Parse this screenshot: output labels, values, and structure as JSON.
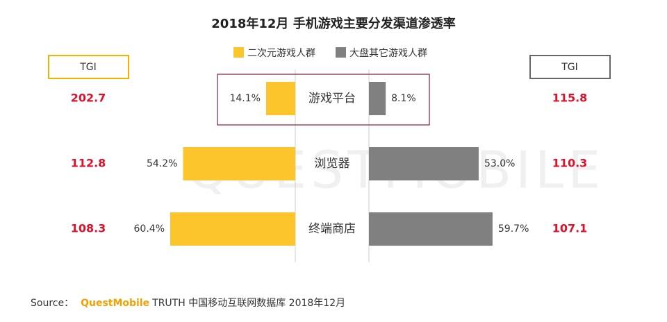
{
  "chart_data": {
    "type": "butterfly",
    "title": "2018年12月 手机游戏主要分发渠道渗透率",
    "categories": [
      "游戏平台",
      "浏览器",
      "终端商店"
    ],
    "series": [
      {
        "name": "二次元游戏人群",
        "color": "#fbc52b",
        "values": [
          14.1,
          54.2,
          60.4
        ],
        "value_labels": [
          "14.1%",
          "54.2%",
          "60.4%"
        ],
        "tgi_label": "TGI",
        "tgi": [
          202.7,
          112.8,
          108.3
        ],
        "tgi_border": "#f0b400"
      },
      {
        "name": "大盘其它游戏人群",
        "color": "#808080",
        "values": [
          8.1,
          53.0,
          59.7
        ],
        "value_labels": [
          "8.1%",
          "53.0%",
          "59.7%"
        ],
        "tgi_label": "TGI",
        "tgi": [
          115.8,
          110.3,
          107.1
        ],
        "tgi_border": "#666666"
      }
    ],
    "watermark": "QUESTMOBILE",
    "source": {
      "prefix": "Source：",
      "brand": "QuestMobile",
      "text": "TRUTH 中国移动互联网数据库 2018年12月"
    }
  }
}
